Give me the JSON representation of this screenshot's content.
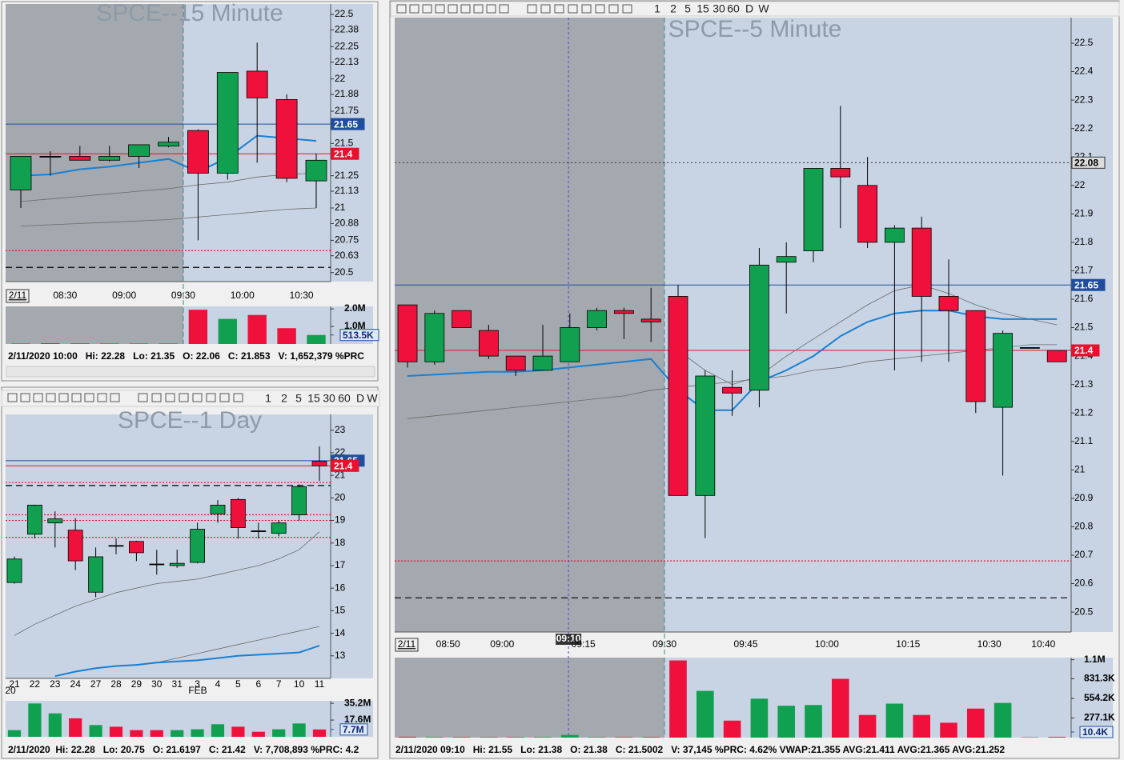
{
  "panels": [
    {
      "title": "SPCE--15 Minute",
      "date_label": "2/11",
      "time_labels": [
        "08:30",
        "09:00",
        "09:30",
        "10:00",
        "10:30"
      ],
      "ylim": [
        20.43,
        22.58
      ],
      "yticks": [
        22.5,
        22.38,
        22.25,
        22.13,
        22,
        21.88,
        21.75,
        21.5,
        21.25,
        21.13,
        21,
        20.88,
        20.75,
        20.63,
        20.5
      ],
      "candles": {
        "open": [
          21.14,
          21.4,
          21.4,
          21.37,
          21.4,
          21.48,
          21.6,
          21.27,
          22.06,
          21.84,
          21.21
        ],
        "high": [
          21.4,
          21.44,
          21.48,
          21.48,
          21.49,
          21.55,
          21.61,
          22.05,
          22.28,
          21.88,
          21.42
        ],
        "low": [
          21.0,
          21.25,
          21.37,
          21.36,
          21.31,
          21.47,
          20.75,
          21.22,
          21.35,
          21.2,
          21.0
        ],
        "close": [
          21.4,
          21.4,
          21.37,
          21.4,
          21.49,
          21.51,
          21.27,
          22.05,
          21.853,
          21.23,
          21.37
        ]
      },
      "up_color": "#10a050",
      "down_color": "#f0103c",
      "lines": [
        {
          "color": "#6b6b6b",
          "values": [
            20.86,
            20.87,
            20.88,
            20.89,
            20.9,
            20.91,
            20.93,
            20.95,
            20.97,
            20.99,
            21.0
          ]
        },
        {
          "color": "#6b6b6b",
          "values": [
            21.05,
            21.07,
            21.09,
            21.11,
            21.13,
            21.15,
            21.18,
            21.2,
            21.24,
            21.26,
            21.27
          ]
        },
        {
          "color": "#1a7fd0",
          "values": [
            21.25,
            21.26,
            21.3,
            21.32,
            21.35,
            21.38,
            21.28,
            21.39,
            21.56,
            21.54,
            21.52
          ]
        }
      ],
      "levels": [
        {
          "value": 21.65,
          "color": "#1f4e9c",
          "style": "solid",
          "label": "21.65"
        },
        {
          "value": 21.42,
          "color": "#e8102c",
          "style": "solid",
          "label": "21.4"
        },
        {
          "value": 20.67,
          "color": "#e8102c",
          "style": "dotted"
        },
        {
          "value": 20.54,
          "color": "#000000",
          "style": "dashed"
        }
      ],
      "volume": {
        "values": [
          30000,
          40000,
          30000,
          30000,
          30000,
          30000,
          1950000,
          1430000,
          1652379,
          900000,
          513500
        ],
        "ylim": [
          0,
          2140000
        ],
        "yticks": [
          {
            "value": 2000000,
            "label": "2.0M"
          },
          {
            "value": 1000000,
            "label": "1.0M"
          }
        ],
        "last": {
          "value": 513500,
          "label": "513.5K"
        }
      },
      "status": "2/11/2020 10:00   Hi: 22.28   Lo: 21.35   O: 22.06   C: 21.853   V: 1,652,379 %PRC"
    },
    {
      "title": "SPCE--1 Day",
      "toolbar": [
        "1",
        "2",
        "5",
        "15",
        "30",
        "60",
        "D",
        "W"
      ],
      "categories": [
        "21",
        "22",
        "23",
        "24",
        "27",
        "28",
        "29",
        "30",
        "31",
        "3",
        "4",
        "5",
        "6",
        "7",
        "10",
        "11"
      ],
      "month_labels": [
        "20",
        "FEB"
      ],
      "ylim": [
        12,
        23.7
      ],
      "yticks": [
        23,
        22,
        21,
        20,
        19,
        18,
        17,
        16,
        15,
        14,
        13
      ],
      "candles": {
        "open": [
          16.25,
          18.39,
          18.89,
          18.57,
          15.82,
          17.89,
          18.07,
          17.07,
          17.0,
          17.14,
          19.29,
          19.93,
          18.54,
          18.43,
          19.25,
          21.6197
        ],
        "high": [
          17.4,
          19.7,
          19.4,
          19.1,
          17.8,
          18.2,
          18.1,
          17.7,
          17.7,
          18.9,
          19.9,
          20.0,
          18.9,
          19.0,
          20.6,
          22.28
        ],
        "low": [
          16.2,
          18.2,
          17.8,
          16.8,
          15.6,
          17.5,
          17.2,
          16.6,
          16.9,
          17.1,
          18.9,
          18.2,
          18.2,
          18.3,
          19.0,
          20.75
        ],
        "close": [
          17.29,
          19.68,
          19.07,
          17.21,
          17.39,
          17.89,
          17.57,
          17.07,
          17.1,
          18.61,
          19.68,
          18.68,
          18.54,
          18.89,
          20.5,
          21.42
        ]
      },
      "up_color": "#10a050",
      "down_color": "#f0103c",
      "lines": [
        {
          "color": "#6b6b6b",
          "values": [
            13.9,
            14.4,
            14.8,
            15.2,
            15.5,
            15.8,
            16.0,
            16.2,
            16.3,
            16.4,
            16.6,
            16.8,
            17.0,
            17.3,
            17.7,
            18.5
          ]
        },
        {
          "color": "#6b6b6b",
          "values": [
            null,
            null,
            null,
            null,
            null,
            null,
            null,
            12.7,
            12.9,
            13.1,
            13.3,
            13.5,
            13.7,
            13.9,
            14.1,
            14.3
          ]
        },
        {
          "color": "#1a7fd0",
          "values": [
            null,
            null,
            12.1,
            12.3,
            12.45,
            12.55,
            12.6,
            12.7,
            12.75,
            12.8,
            12.9,
            13.0,
            13.05,
            13.1,
            13.15,
            13.45
          ]
        }
      ],
      "levels": [
        {
          "value": 21.65,
          "color": "#1f4e9c",
          "style": "solid",
          "label": "21.65"
        },
        {
          "value": 21.42,
          "color": "#e8102c",
          "style": "solid",
          "label": "21.4"
        },
        {
          "value": 20.68,
          "color": "#e8102c",
          "style": "dotted"
        },
        {
          "value": 20.55,
          "color": "#000000",
          "style": "dashed"
        },
        {
          "value": 19.25,
          "color": "#e8102c",
          "style": "dotted"
        },
        {
          "value": 19.0,
          "color": "#e8102c",
          "style": "dotted"
        },
        {
          "value": 18.25,
          "color": "#e8102c",
          "style": "dotted"
        }
      ],
      "volume": {
        "values": [
          7000000,
          35000000,
          24600000,
          19400000,
          12300000,
          10600000,
          7000000,
          7000000,
          7000000,
          7900000,
          13200000,
          10600000,
          5300000,
          7900000,
          14000000,
          7708893
        ],
        "ylim": [
          0,
          37800000
        ],
        "yticks": [
          {
            "value": 35200000,
            "label": "35.2M"
          },
          {
            "value": 17600000,
            "label": "17.6M"
          }
        ],
        "last": {
          "value": 7708893,
          "label": "7.7M"
        }
      },
      "status": "2/11/2020  Hi: 22.28   Lo: 20.75   O: 21.6197   C: 21.42   V: 7,708,893 %PRC: 4.2"
    },
    {
      "title": "SPCE--5 Minute",
      "date_label": "2/11",
      "toolbar": [
        "1",
        "2",
        "5",
        "15",
        "30",
        "60",
        "D",
        "W"
      ],
      "time_labels": [
        "08:50",
        "09:00",
        "09:15",
        "09:30",
        "09:45",
        "10:00",
        "10:15",
        "10:30",
        "10:40"
      ],
      "ylim": [
        20.43,
        22.59
      ],
      "yticks": [
        22.5,
        22.4,
        22.3,
        22.2,
        22.1,
        22,
        21.9,
        21.8,
        21.7,
        21.6,
        21.5,
        21.4,
        21.3,
        21.2,
        21.1,
        21,
        20.9,
        20.8,
        20.7,
        20.6,
        20.5
      ],
      "candles": {
        "open": [
          21.58,
          21.38,
          21.56,
          21.49,
          21.4,
          21.35,
          21.38,
          21.5,
          21.56,
          21.53,
          21.61,
          20.91,
          21.29,
          21.28,
          21.73,
          21.77,
          22.06,
          22.0,
          21.8,
          21.85,
          21.61,
          21.56,
          21.22,
          21.43,
          21.42
        ],
        "high": [
          21.58,
          21.56,
          21.56,
          21.51,
          21.4,
          21.51,
          21.55,
          21.57,
          21.57,
          21.64,
          21.65,
          21.35,
          21.35,
          21.78,
          21.8,
          22.06,
          22.28,
          22.1,
          21.86,
          21.89,
          21.74,
          21.56,
          21.49,
          21.43,
          21.42
        ],
        "low": [
          21.36,
          21.37,
          21.5,
          21.39,
          21.33,
          21.35,
          21.38,
          21.49,
          21.46,
          21.45,
          20.91,
          20.76,
          21.19,
          21.22,
          21.55,
          21.73,
          21.85,
          21.78,
          21.35,
          21.38,
          21.38,
          21.2,
          20.98,
          21.43,
          21.38
        ],
        "close": [
          21.38,
          21.55,
          21.5,
          21.4,
          21.35,
          21.4,
          21.5002,
          21.56,
          21.55,
          21.52,
          20.91,
          21.33,
          21.27,
          21.72,
          21.75,
          22.06,
          22.03,
          21.8,
          21.85,
          21.61,
          21.56,
          21.24,
          21.48,
          21.43,
          21.38
        ]
      },
      "up_color": "#10a050",
      "down_color": "#f0103c",
      "lines": [
        {
          "color": "#6b6b6b",
          "values": [
            21.18,
            21.19,
            21.2,
            21.21,
            21.22,
            21.23,
            21.24,
            21.25,
            21.26,
            21.28,
            21.29,
            21.3,
            21.31,
            21.32,
            21.33,
            21.35,
            21.36,
            21.38,
            21.39,
            21.4,
            21.41,
            21.42,
            21.43,
            21.44,
            21.44
          ]
        },
        {
          "color": "#6b6b6b",
          "values": [
            null,
            null,
            null,
            null,
            null,
            null,
            null,
            null,
            null,
            null,
            21.42,
            21.35,
            21.3,
            21.33,
            21.4,
            21.46,
            21.52,
            21.58,
            21.63,
            21.65,
            21.62,
            21.58,
            21.55,
            21.53,
            21.51
          ]
        },
        {
          "color": "#1a7fd0",
          "values": [
            21.33,
            21.335,
            21.34,
            21.345,
            21.345,
            21.35,
            21.36,
            21.37,
            21.38,
            21.39,
            21.28,
            21.21,
            21.21,
            21.31,
            21.35,
            21.4,
            21.47,
            21.52,
            21.55,
            21.56,
            21.56,
            21.54,
            21.53,
            21.53,
            21.53
          ]
        }
      ],
      "levels": [
        {
          "value": 21.65,
          "color": "#1f4e9c",
          "style": "solid",
          "label": "21.65"
        },
        {
          "value": 21.42,
          "color": "#e8102c",
          "style": "solid",
          "label": "21.4"
        },
        {
          "value": 20.68,
          "color": "#e8102c",
          "style": "dotted"
        },
        {
          "value": 20.55,
          "color": "#000000",
          "style": "dashed"
        }
      ],
      "crosshair": {
        "time_label": "09:10",
        "value": 22.08,
        "label": "22.08"
      },
      "volume": {
        "values": [
          12000,
          9000,
          8000,
          7000,
          7000,
          9000,
          37145,
          8000,
          7000,
          9000,
          1090000,
          660000,
          240000,
          550000,
          450000,
          460000,
          830000,
          320000,
          480000,
          320000,
          210000,
          410000,
          490000,
          5000,
          10400
        ],
        "ylim": [
          0,
          1130000
        ],
        "yticks": [
          {
            "value": 1100000,
            "label": "1.1M"
          },
          {
            "value": 831300,
            "label": "831.3K"
          },
          {
            "value": 554200,
            "label": "554.2K"
          },
          {
            "value": 277100,
            "label": "277.1K"
          }
        ],
        "last": {
          "value": 10400,
          "label": "10.4K"
        }
      },
      "status": "2/11/2020 09:10   Hi: 21.55   Lo: 21.38   O: 21.38   C: 21.5002   V: 37,145 %PRC: 4.62% VWAP:21.355 AVG:21.411 AVG:21.365 AVG:21.252"
    }
  ]
}
